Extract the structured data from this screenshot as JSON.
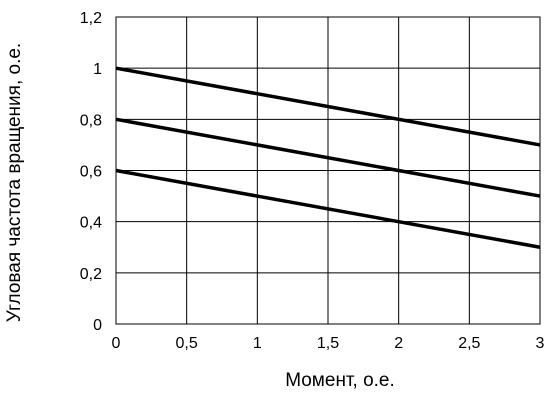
{
  "chart_data": {
    "type": "line",
    "title": "",
    "xlabel": "Момент, о.е.",
    "ylabel": "Угловая частота вращения, о.е.",
    "xlim": [
      0,
      3
    ],
    "ylim": [
      0,
      1.2
    ],
    "x_ticks": [
      0,
      0.5,
      1,
      1.5,
      2,
      2.5,
      3
    ],
    "y_ticks": [
      0,
      0.2,
      0.4,
      0.6,
      0.8,
      1,
      1.2
    ],
    "x_tick_labels": [
      "0",
      "0,5",
      "1",
      "1,5",
      "2",
      "2,5",
      "3"
    ],
    "y_tick_labels": [
      "0",
      "0,2",
      "0,4",
      "0,6",
      "0,8",
      "1",
      "1,2"
    ],
    "grid": true,
    "legend": "none",
    "line_color": "#000000",
    "grid_color": "#000000",
    "series": [
      {
        "x": [
          0,
          3
        ],
        "y": [
          1.0,
          0.7
        ]
      },
      {
        "x": [
          0,
          3
        ],
        "y": [
          0.8,
          0.5
        ]
      },
      {
        "x": [
          0,
          3
        ],
        "y": [
          0.6,
          0.3
        ]
      }
    ]
  }
}
